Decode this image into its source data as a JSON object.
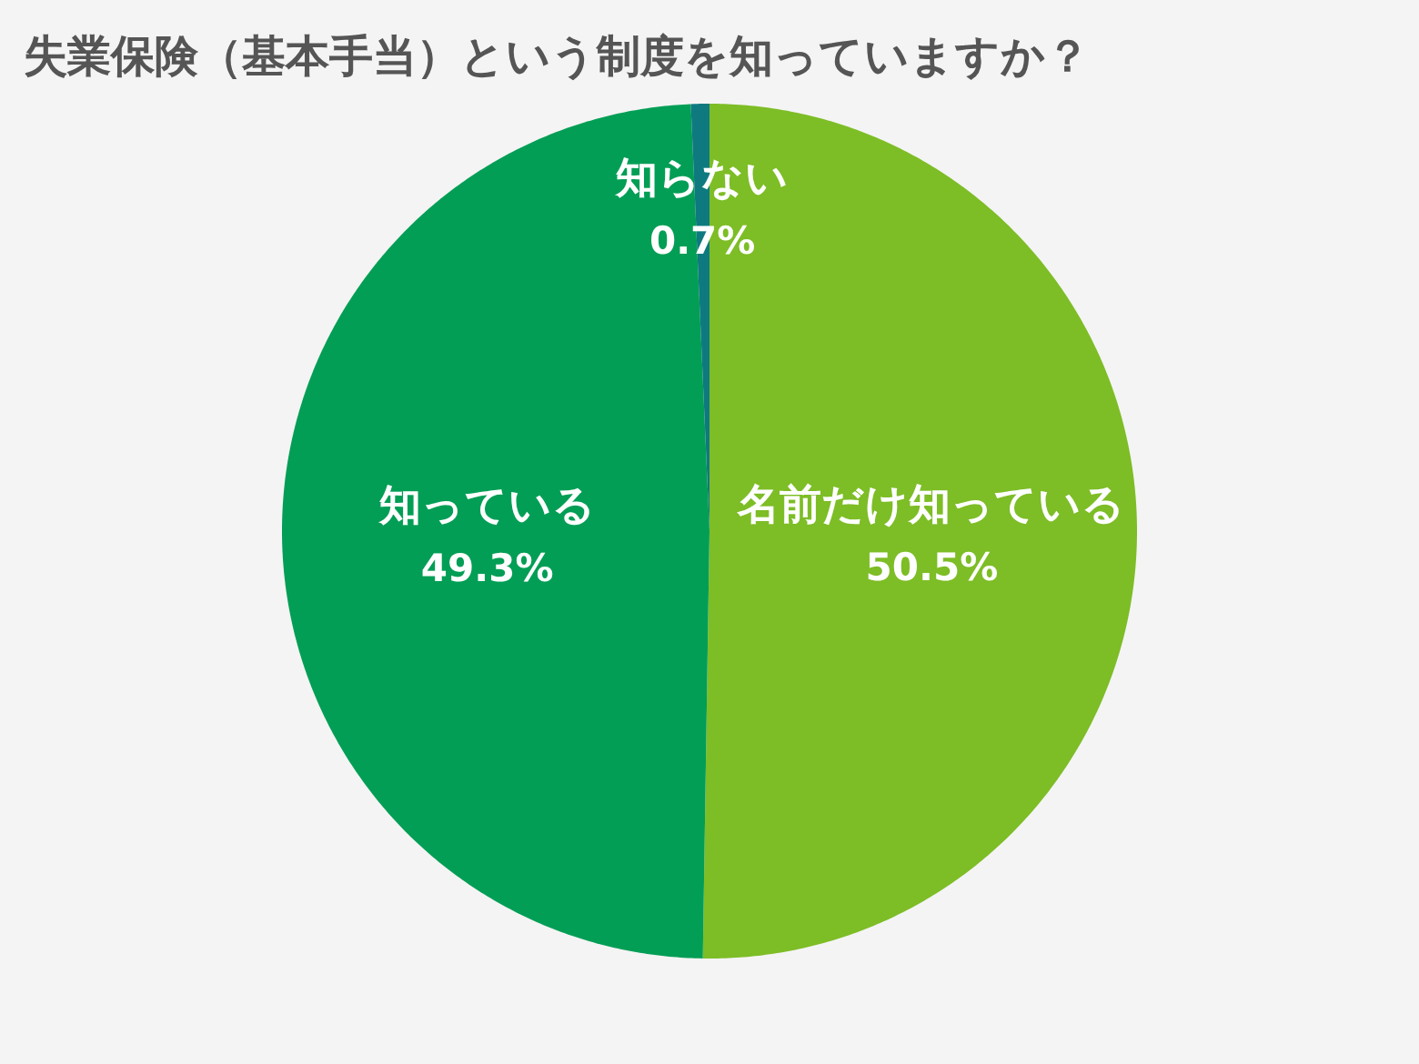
{
  "chart_data": {
    "type": "pie",
    "title": "失業保険（基本手当）という制度を知っていますか？",
    "categories": [
      "名前だけ知っている",
      "知っている",
      "知らない"
    ],
    "values": [
      50.5,
      49.3,
      0.7
    ],
    "colors": [
      "#7dbd26",
      "#029e55",
      "#0e7a80"
    ],
    "value_labels": [
      "50.5%",
      "49.3%",
      "0.7%"
    ]
  }
}
